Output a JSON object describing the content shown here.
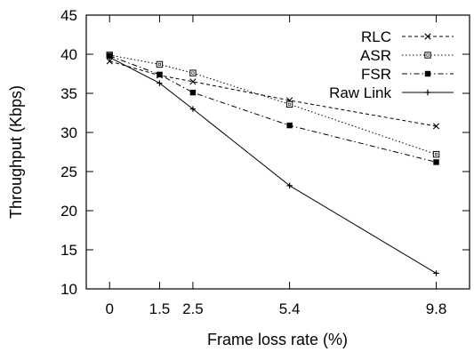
{
  "chart_data": {
    "type": "line",
    "title": "",
    "xlabel": "Frame loss rate (%)",
    "ylabel": "Throughput (Kbps)",
    "xlim": [
      -0.7,
      10.8
    ],
    "ylim": [
      10,
      45
    ],
    "x_ticks": [
      0,
      1.5,
      2.5,
      5.4,
      9.8
    ],
    "x_tick_labels": [
      "0",
      "1.5",
      "2.5",
      "5.4",
      "9.8"
    ],
    "y_ticks": [
      10,
      15,
      20,
      25,
      30,
      35,
      40,
      45
    ],
    "y_tick_labels": [
      "10",
      "15",
      "20",
      "25",
      "30",
      "35",
      "40",
      "45"
    ],
    "grid": false,
    "legend_position": "top-right",
    "x": [
      0,
      1.5,
      2.5,
      5.4,
      9.8
    ],
    "series": [
      {
        "name": "RLC",
        "values": [
          39.1,
          37.3,
          36.5,
          34.1,
          30.8
        ],
        "color": "#000000",
        "dash": "dashed",
        "marker": "x"
      },
      {
        "name": "ASR",
        "values": [
          39.9,
          38.7,
          37.6,
          33.6,
          27.2
        ],
        "color": "#000000",
        "dash": "dotted",
        "marker": "square-open"
      },
      {
        "name": "FSR",
        "values": [
          39.8,
          37.4,
          35.1,
          30.9,
          26.2
        ],
        "color": "#000000",
        "dash": "dashdot",
        "marker": "square-filled"
      },
      {
        "name": "Raw Link",
        "values": [
          39.6,
          36.3,
          33.0,
          23.2,
          12.0
        ],
        "color": "#000000",
        "dash": "solid",
        "marker": "plus"
      }
    ]
  }
}
